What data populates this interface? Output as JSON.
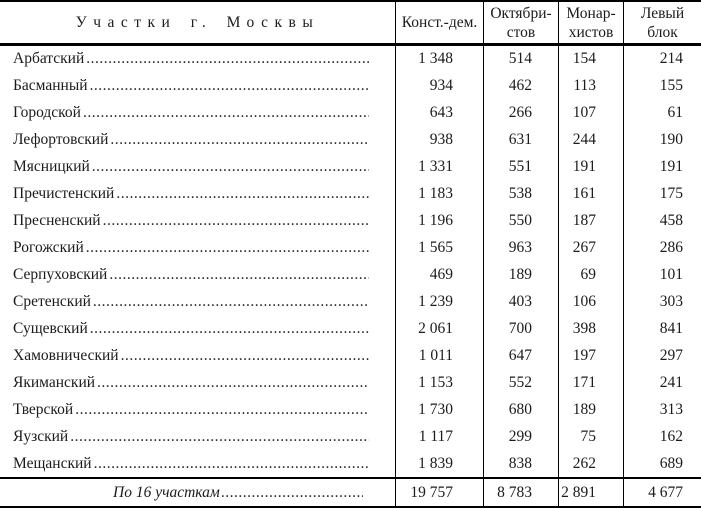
{
  "header": {
    "districts_label": "Участки г. Москвы",
    "parties": [
      {
        "line1": "Конст.-дем.",
        "line2": ""
      },
      {
        "line1": "Октябри-",
        "line2": "стов"
      },
      {
        "line1": "Монар-",
        "line2": "хистов"
      },
      {
        "line1": "Левый",
        "line2": "блок"
      }
    ]
  },
  "rows": [
    {
      "name": "Арбатский",
      "values": [
        "1 348",
        "514",
        "154",
        "214"
      ]
    },
    {
      "name": "Басманный",
      "values": [
        "934",
        "462",
        "113",
        "155"
      ]
    },
    {
      "name": "Городской",
      "values": [
        "643",
        "266",
        "107",
        "61"
      ]
    },
    {
      "name": "Лефортовский",
      "values": [
        "938",
        "631",
        "244",
        "190"
      ]
    },
    {
      "name": "Мясницкий",
      "values": [
        "1 331",
        "551",
        "191",
        "191"
      ]
    },
    {
      "name": "Пречистенский",
      "values": [
        "1 183",
        "538",
        "161",
        "175"
      ]
    },
    {
      "name": "Пресненский",
      "values": [
        "1 196",
        "550",
        "187",
        "458"
      ]
    },
    {
      "name": "Рогожский",
      "values": [
        "1 565",
        "963",
        "267",
        "286"
      ]
    },
    {
      "name": "Серпуховский",
      "values": [
        "469",
        "189",
        "69",
        "101"
      ]
    },
    {
      "name": "Сретенский",
      "values": [
        "1 239",
        "403",
        "106",
        "303"
      ]
    },
    {
      "name": "Сущевский",
      "values": [
        "2 061",
        "700",
        "398",
        "841"
      ]
    },
    {
      "name": "Хамовнический",
      "values": [
        "1 011",
        "647",
        "197",
        "297"
      ]
    },
    {
      "name": "Якиманский",
      "values": [
        "1 153",
        "552",
        "171",
        "241"
      ]
    },
    {
      "name": "Тверской",
      "values": [
        "1 730",
        "680",
        "189",
        "313"
      ]
    },
    {
      "name": "Яузский",
      "values": [
        "1 117",
        "299",
        "75",
        "162"
      ]
    },
    {
      "name": "Мещанский",
      "values": [
        "1 839",
        "838",
        "262",
        "689"
      ]
    }
  ],
  "total": {
    "label": "По 16 участкам",
    "values": [
      "19 757",
      "8 783",
      "2 891",
      "4 677"
    ]
  },
  "colors": {
    "text": "#1b1b1b",
    "rule": "#000000",
    "background": "#ffffff"
  }
}
